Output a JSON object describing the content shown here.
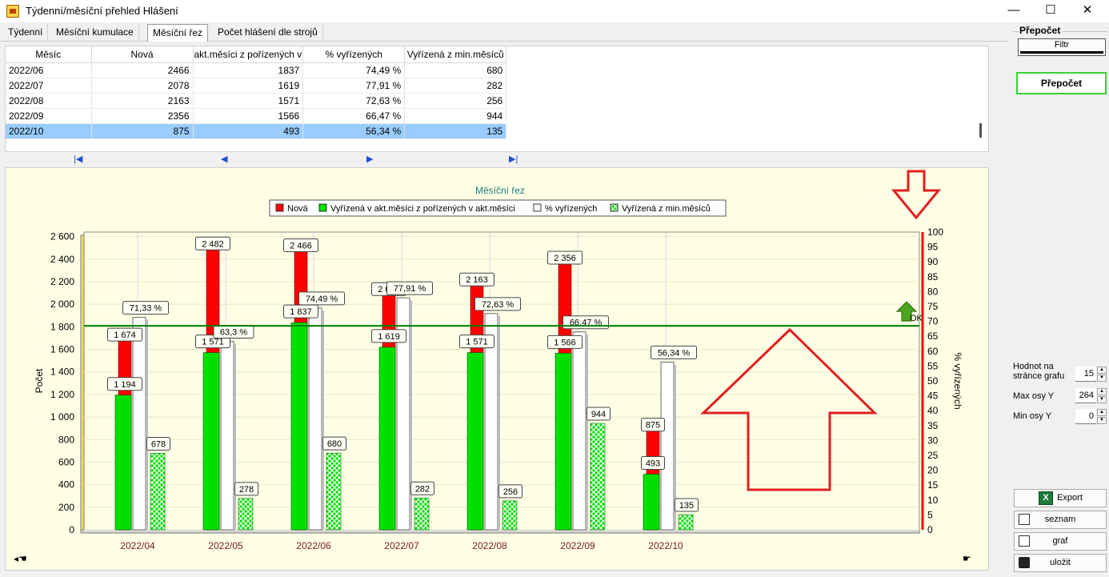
{
  "window": {
    "title": "Týdenní/měsíční přehled Hlášení",
    "minimize": "—",
    "maximize": "☐",
    "close": "✕"
  },
  "tabs": [
    "Týdenní",
    "Měsíční kumulace",
    "Měsíční řez",
    "Počet hlášení dle strojů"
  ],
  "table": {
    "columns": [
      "Měsíc",
      "Nová",
      "akt.měsíci z pořízených v",
      "% vyřízených",
      "Vyřízená z min.měsíců"
    ],
    "rows": [
      [
        "2022/06",
        "2466",
        "1837",
        "74,49 %",
        "680"
      ],
      [
        "2022/07",
        "2078",
        "1619",
        "77,91 %",
        "282"
      ],
      [
        "2022/08",
        "2163",
        "1571",
        "72,63 %",
        "256"
      ],
      [
        "2022/09",
        "2356",
        "1566",
        "66,47 %",
        "944"
      ],
      [
        "2022/10",
        "875",
        "493",
        "56,34 %",
        "135"
      ]
    ],
    "selected_row": 4
  },
  "nav": {
    "first": "|◀",
    "prev": "◀",
    "next": "▶",
    "last": "▶|"
  },
  "chart_data": {
    "type": "bar",
    "title": "Měsíční řez",
    "categories": [
      "2022/04",
      "2022/05",
      "2022/06",
      "2022/07",
      "2022/08",
      "2022/09",
      "2022/10"
    ],
    "series": [
      {
        "name": "Nová",
        "color": "#ff0000",
        "axis": "left",
        "values": [
          1674,
          2482,
          2466,
          2078,
          2163,
          2356,
          875
        ],
        "labels": [
          "1 674",
          "2 482",
          "2 466",
          "2 078",
          "2 163",
          "2 356",
          "875"
        ]
      },
      {
        "name": "Vyřízená v akt.měsíci z pořízených v akt.měsíci",
        "color": "#00e000",
        "axis": "left",
        "values": [
          1194,
          1571,
          1837,
          1619,
          1571,
          1566,
          493
        ],
        "labels": [
          "1 194",
          "1 571",
          "1 837",
          "1 619",
          "1 571",
          "1 566",
          "493"
        ]
      },
      {
        "name": "% vyřízených",
        "color": "#ffffff",
        "axis": "right",
        "values": [
          71.33,
          63.3,
          74.49,
          77.91,
          72.63,
          66.47,
          56.34
        ],
        "labels": [
          "71,33 %",
          "63,3 %",
          "74,49 %",
          "77,91 %",
          "72,63 %",
          "66,47 %",
          "56,34 %"
        ]
      },
      {
        "name": "Vyřízená z min.měsíců",
        "color": "#00e000",
        "pattern": "crosshatch",
        "axis": "left",
        "values": [
          678,
          278,
          680,
          282,
          256,
          944,
          135
        ],
        "labels": [
          "678",
          "278",
          "680",
          "282",
          "256",
          "944",
          "135"
        ]
      }
    ],
    "ylabel": "Počet",
    "y2label": "% vyřízených",
    "ylim": [
      0,
      2640
    ],
    "y2lim": [
      0,
      100
    ],
    "yticks": [
      "0",
      "200",
      "400",
      "600",
      "800",
      "1 000",
      "1 200",
      "1 400",
      "1 600",
      "1 800",
      "2 000",
      "2 200",
      "2 400",
      "2 600"
    ],
    "y2ticks": [
      "0",
      "5",
      "10",
      "15",
      "20",
      "25",
      "30",
      "35",
      "40",
      "45",
      "50",
      "55",
      "60",
      "65",
      "70",
      "75",
      "80",
      "85",
      "90",
      "95",
      "100"
    ],
    "target_line": {
      "value": 68.5,
      "axis": "right",
      "color": "#008000",
      "label": "OK"
    },
    "legend_position": "top",
    "grid": true
  },
  "sidebar": {
    "group_title": "Přepočet",
    "filtr": "Filtr",
    "prepocet": "Přepočet",
    "hodnot_label": "Hodnot na stránce grafu",
    "hodnot_value": "15",
    "max_label": "Max osy Y",
    "max_value": "264",
    "min_label": "Min osy Y",
    "min_value": "0",
    "export": "Export",
    "seznam": "seznam",
    "graf": "graf",
    "ulozit": "uložit"
  },
  "scroll": {
    "left": "◂☚",
    "right": "☛"
  }
}
